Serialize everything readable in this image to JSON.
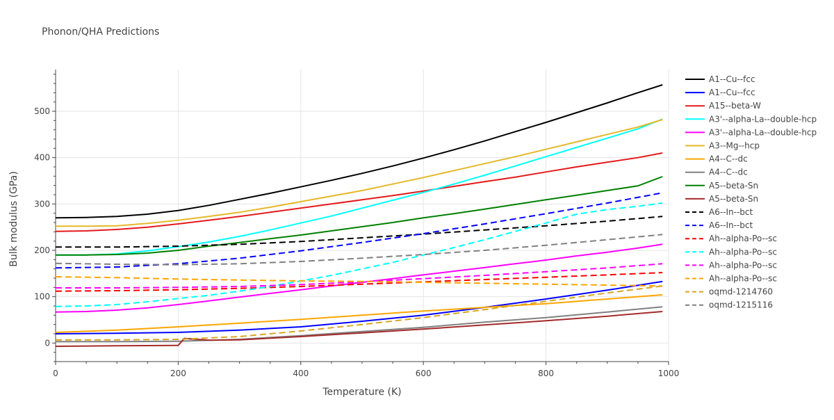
{
  "chart_data": {
    "type": "line",
    "title": "Phonon/QHA Predictions",
    "xlabel": "Temperature (K)",
    "ylabel": "Bulk modulus (GPa)",
    "xlim": [
      0,
      1000
    ],
    "ylim": [
      -40,
      590
    ],
    "xticks": [
      0,
      200,
      400,
      600,
      800,
      1000
    ],
    "yticks": [
      0,
      100,
      200,
      300,
      400,
      500
    ],
    "grid": true,
    "legend_position": "right",
    "series": [
      {
        "name": "A1--Cu--fcc",
        "color": "#000000",
        "dash": "solid",
        "x": [
          0,
          50,
          100,
          150,
          200,
          250,
          300,
          350,
          400,
          450,
          500,
          550,
          600,
          650,
          700,
          750,
          800,
          850,
          900,
          950,
          990
        ],
        "y": [
          270,
          271,
          273,
          278,
          286,
          297,
          310,
          323,
          337,
          351,
          366,
          382,
          399,
          417,
          436,
          456,
          476,
          497,
          518,
          540,
          557
        ]
      },
      {
        "name": "A1--Cu--fcc",
        "color": "#0000ff",
        "dash": "solid",
        "x": [
          0,
          100,
          200,
          300,
          400,
          500,
          600,
          700,
          800,
          900,
          990
        ],
        "y": [
          20,
          21,
          23,
          28,
          35,
          47,
          60,
          77,
          95,
          114,
          133
        ]
      },
      {
        "name": "A15--beta-W",
        "color": "#e31a1c",
        "dash": "solid",
        "x": [
          0,
          50,
          100,
          150,
          200,
          250,
          300,
          350,
          400,
          450,
          500,
          550,
          600,
          650,
          700,
          750,
          800,
          850,
          900,
          950,
          990
        ],
        "y": [
          241,
          242,
          245,
          250,
          257,
          265,
          273,
          282,
          291,
          300,
          309,
          318,
          328,
          338,
          348,
          358,
          369,
          380,
          390,
          400,
          410
        ]
      },
      {
        "name": "A3'--alpha-La--double-hcp",
        "color": "#00ffff",
        "dash": "solid",
        "x": [
          0,
          50,
          100,
          150,
          200,
          250,
          300,
          350,
          400,
          450,
          500,
          550,
          600,
          650,
          700,
          750,
          800,
          850,
          900,
          950,
          990
        ],
        "y": [
          190,
          190,
          192,
          199,
          208,
          218,
          230,
          244,
          259,
          274,
          291,
          308,
          325,
          343,
          362,
          382,
          402,
          422,
          442,
          462,
          483
        ]
      },
      {
        "name": "A3'--alpha-La--double-hcp",
        "color": "#ff00ff",
        "dash": "solid",
        "x": [
          0,
          50,
          100,
          150,
          200,
          250,
          300,
          350,
          400,
          450,
          500,
          550,
          600,
          650,
          700,
          750,
          800,
          850,
          900,
          950,
          990
        ],
        "y": [
          67,
          68,
          71,
          76,
          83,
          91,
          99,
          107,
          115,
          123,
          131,
          139,
          147,
          155,
          163,
          171,
          179,
          188,
          196,
          205,
          213
        ]
      },
      {
        "name": "A3--Mg--hcp",
        "color": "#e5b826",
        "dash": "solid",
        "x": [
          0,
          50,
          100,
          150,
          200,
          250,
          300,
          350,
          400,
          450,
          500,
          550,
          600,
          650,
          700,
          750,
          800,
          850,
          900,
          950,
          990
        ],
        "y": [
          252,
          252,
          253,
          258,
          265,
          273,
          282,
          293,
          305,
          317,
          329,
          343,
          357,
          372,
          387,
          402,
          418,
          434,
          450,
          466,
          482
        ]
      },
      {
        "name": "A4--C--dc",
        "color": "#ffa500",
        "dash": "solid",
        "x": [
          0,
          100,
          200,
          300,
          400,
          500,
          600,
          700,
          800,
          900,
          990
        ],
        "y": [
          23,
          28,
          35,
          43,
          51,
          60,
          69,
          77,
          85,
          95,
          104
        ]
      },
      {
        "name": "A4--C--dc",
        "color": "#808080",
        "dash": "solid",
        "x": [
          0,
          100,
          200,
          300,
          400,
          500,
          600,
          700,
          800,
          900,
          990
        ],
        "y": [
          3,
          3,
          4,
          8,
          16,
          25,
          34,
          45,
          55,
          67,
          78
        ]
      },
      {
        "name": "A5--beta-Sn",
        "color": "#008000",
        "dash": "solid",
        "x": [
          0,
          50,
          100,
          150,
          200,
          250,
          300,
          350,
          400,
          450,
          500,
          550,
          600,
          650,
          700,
          750,
          800,
          850,
          900,
          950,
          990
        ],
        "y": [
          190,
          190,
          191,
          194,
          200,
          209,
          217,
          225,
          233,
          242,
          251,
          260,
          270,
          279,
          289,
          299,
          309,
          319,
          329,
          339,
          359
        ]
      },
      {
        "name": "A5--beta-Sn",
        "color": "#a52a2a",
        "dash": "solid",
        "x": [
          0,
          100,
          200,
          210,
          250,
          300,
          400,
          500,
          600,
          700,
          800,
          900,
          990
        ],
        "y": [
          -7,
          -6,
          -5,
          10,
          6,
          7,
          14,
          22,
          30,
          39,
          48,
          58,
          68
        ]
      },
      {
        "name": "A6--In--bct",
        "color": "#000000",
        "dash": "dash",
        "x": [
          0,
          100,
          200,
          300,
          400,
          500,
          600,
          700,
          800,
          900,
          990
        ],
        "y": [
          207,
          207,
          209,
          213,
          219,
          227,
          235,
          244,
          253,
          263,
          273
        ]
      },
      {
        "name": "A6--In--bct",
        "color": "#0000ff",
        "dash": "dash",
        "x": [
          0,
          100,
          200,
          300,
          400,
          500,
          600,
          700,
          800,
          900,
          990
        ],
        "y": [
          162,
          164,
          171,
          183,
          199,
          217,
          236,
          257,
          279,
          302,
          324
        ]
      },
      {
        "name": "Ah--alpha-Po--sc",
        "color": "#ff0000",
        "dash": "dash",
        "x": [
          0,
          100,
          200,
          300,
          400,
          500,
          600,
          700,
          800,
          900,
          990
        ],
        "y": [
          112,
          113,
          115,
          118,
          122,
          127,
          132,
          137,
          142,
          147,
          152
        ]
      },
      {
        "name": "Ah--alpha-Po--sc",
        "color": "#00ffff",
        "dash": "dash",
        "x": [
          0,
          50,
          100,
          150,
          200,
          250,
          300,
          350,
          400,
          450,
          500,
          550,
          600,
          650,
          700,
          750,
          800,
          850,
          900,
          950,
          990
        ],
        "y": [
          79,
          80,
          83,
          89,
          96,
          103,
          112,
          122,
          134,
          146,
          160,
          174,
          190,
          206,
          223,
          241,
          259,
          278,
          288,
          295,
          302
        ]
      },
      {
        "name": "Ah--alpha-Po--sc",
        "color": "#ff00ff",
        "dash": "dash",
        "x": [
          0,
          100,
          200,
          300,
          400,
          500,
          600,
          700,
          800,
          900,
          990
        ],
        "y": [
          119,
          119,
          120,
          122,
          126,
          132,
          139,
          146,
          154,
          162,
          171
        ]
      },
      {
        "name": "Ah--alpha-Po--sc",
        "color": "#ffa500",
        "dash": "dash",
        "x": [
          0,
          100,
          200,
          300,
          400,
          500,
          600,
          700,
          800,
          900,
          990
        ],
        "y": [
          143,
          141,
          138,
          136,
          134,
          133,
          131,
          129,
          127,
          125,
          123
        ]
      },
      {
        "name": "oqmd-1214760",
        "color": "#daa520",
        "dash": "dash",
        "x": [
          0,
          100,
          200,
          300,
          400,
          500,
          600,
          700,
          800,
          900,
          990
        ],
        "y": [
          7,
          7,
          8,
          14,
          26,
          40,
          55,
          72,
          90,
          108,
          123
        ]
      },
      {
        "name": "oqmd-1215116",
        "color": "#808080",
        "dash": "dash",
        "x": [
          0,
          100,
          200,
          300,
          400,
          500,
          600,
          700,
          800,
          900,
          990
        ],
        "y": [
          172,
          170,
          169,
          171,
          176,
          183,
          191,
          200,
          211,
          223,
          234
        ]
      }
    ]
  }
}
